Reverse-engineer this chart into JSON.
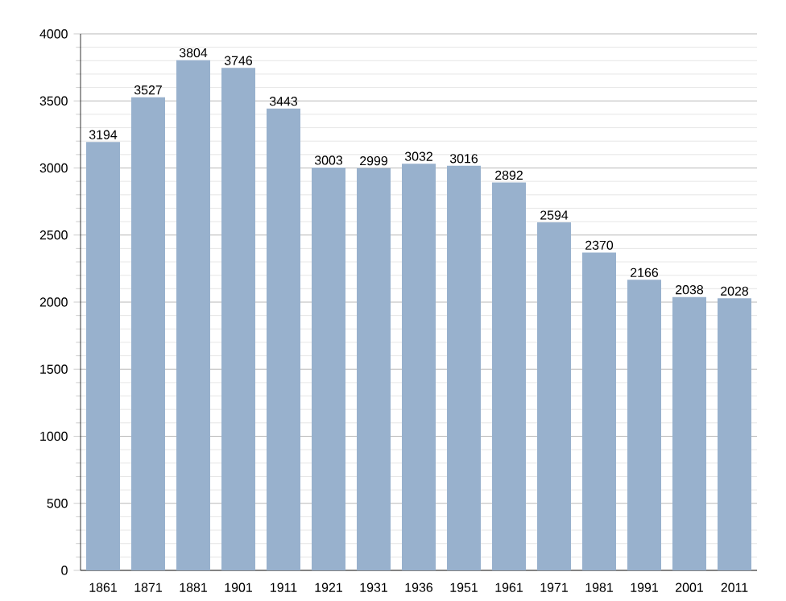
{
  "chart_data": {
    "type": "bar",
    "categories": [
      "1861",
      "1871",
      "1881",
      "1901",
      "1911",
      "1921",
      "1931",
      "1936",
      "1951",
      "1961",
      "1971",
      "1981",
      "1991",
      "2001",
      "2011"
    ],
    "values": [
      3194,
      3527,
      3804,
      3746,
      3443,
      3003,
      2999,
      3032,
      3016,
      2892,
      2594,
      2370,
      2166,
      2038,
      2028
    ],
    "color": "#98b1cd",
    "ylim": [
      0,
      4000
    ],
    "yticks": [
      0,
      500,
      1000,
      1500,
      2000,
      2500,
      3000,
      3500,
      4000
    ],
    "grid": "y",
    "data_labels": true
  }
}
